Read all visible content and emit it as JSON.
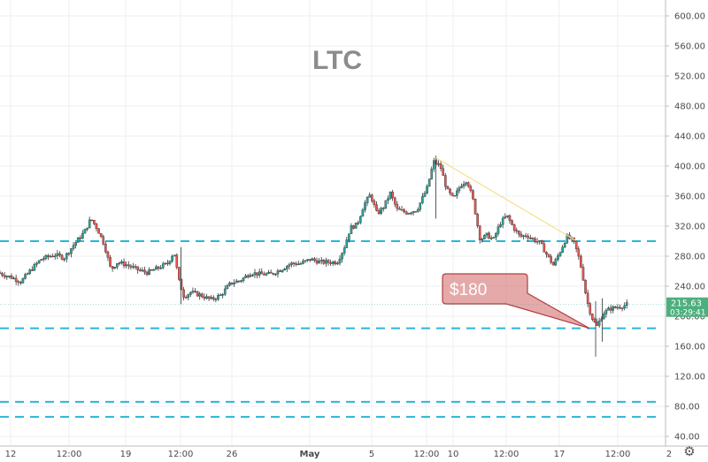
{
  "chart_data": {
    "type": "candlestick",
    "title": "LTC",
    "ylim": [
      40,
      620
    ],
    "y_ticks": [
      "600.00",
      "560.00",
      "520.00",
      "480.00",
      "440.00",
      "400.00",
      "360.00",
      "320.00",
      "280.00",
      "240.00",
      "200.00",
      "160.00",
      "120.00",
      "80.00",
      "40.00"
    ],
    "x_ticks": [
      "12",
      "12:00",
      "19",
      "12:00",
      "26",
      "May",
      "5",
      "12:00",
      "10",
      "12:00",
      "17",
      "12:00",
      "2"
    ],
    "grid": true,
    "last_price": "215.63",
    "countdown": "03:29:41",
    "annotation": {
      "text": "$180",
      "target_price": 184
    },
    "horizontal_levels": [
      300,
      184,
      86,
      66
    ],
    "trendline": [
      {
        "t": 0.655,
        "p": 411
      },
      {
        "t": 0.865,
        "p": 301
      }
    ],
    "up_color": "#26a69a",
    "down_color": "#ef5350",
    "level_color": "#29b6d8",
    "trend_color": "#f5e08a",
    "price_path": [
      [
        0.0,
        258
      ],
      [
        0.02,
        252
      ],
      [
        0.035,
        246
      ],
      [
        0.05,
        262
      ],
      [
        0.065,
        276
      ],
      [
        0.085,
        282
      ],
      [
        0.1,
        278
      ],
      [
        0.115,
        296
      ],
      [
        0.13,
        312
      ],
      [
        0.14,
        330
      ],
      [
        0.15,
        316
      ],
      [
        0.16,
        296
      ],
      [
        0.17,
        262
      ],
      [
        0.18,
        272
      ],
      [
        0.195,
        268
      ],
      [
        0.21,
        262
      ],
      [
        0.225,
        258
      ],
      [
        0.24,
        264
      ],
      [
        0.255,
        270
      ],
      [
        0.265,
        286
      ],
      [
        0.272,
        248
      ],
      [
        0.28,
        226
      ],
      [
        0.29,
        232
      ],
      [
        0.305,
        228
      ],
      [
        0.32,
        222
      ],
      [
        0.335,
        228
      ],
      [
        0.35,
        244
      ],
      [
        0.365,
        248
      ],
      [
        0.38,
        258
      ],
      [
        0.395,
        256
      ],
      [
        0.41,
        256
      ],
      [
        0.425,
        262
      ],
      [
        0.44,
        270
      ],
      [
        0.455,
        270
      ],
      [
        0.47,
        276
      ],
      [
        0.485,
        272
      ],
      [
        0.5,
        272
      ],
      [
        0.51,
        272
      ],
      [
        0.52,
        290
      ],
      [
        0.53,
        318
      ],
      [
        0.54,
        322
      ],
      [
        0.55,
        348
      ],
      [
        0.56,
        362
      ],
      [
        0.57,
        336
      ],
      [
        0.58,
        346
      ],
      [
        0.59,
        364
      ],
      [
        0.6,
        342
      ],
      [
        0.615,
        338
      ],
      [
        0.63,
        342
      ],
      [
        0.645,
        370
      ],
      [
        0.655,
        406
      ],
      [
        0.665,
        400
      ],
      [
        0.675,
        368
      ],
      [
        0.685,
        356
      ],
      [
        0.695,
        374
      ],
      [
        0.705,
        382
      ],
      [
        0.715,
        352
      ],
      [
        0.72,
        326
      ],
      [
        0.725,
        302
      ],
      [
        0.735,
        308
      ],
      [
        0.745,
        302
      ],
      [
        0.755,
        324
      ],
      [
        0.765,
        334
      ],
      [
        0.775,
        318
      ],
      [
        0.785,
        306
      ],
      [
        0.795,
        308
      ],
      [
        0.805,
        302
      ],
      [
        0.815,
        298
      ],
      [
        0.825,
        282
      ],
      [
        0.835,
        268
      ],
      [
        0.845,
        286
      ],
      [
        0.855,
        306
      ],
      [
        0.865,
        300
      ],
      [
        0.872,
        282
      ],
      [
        0.878,
        260
      ],
      [
        0.885,
        222
      ],
      [
        0.892,
        200
      ],
      [
        0.9,
        186
      ],
      [
        0.91,
        204
      ],
      [
        0.92,
        210
      ],
      [
        0.93,
        212
      ],
      [
        0.94,
        214
      ],
      [
        0.945,
        215.63
      ]
    ]
  }
}
